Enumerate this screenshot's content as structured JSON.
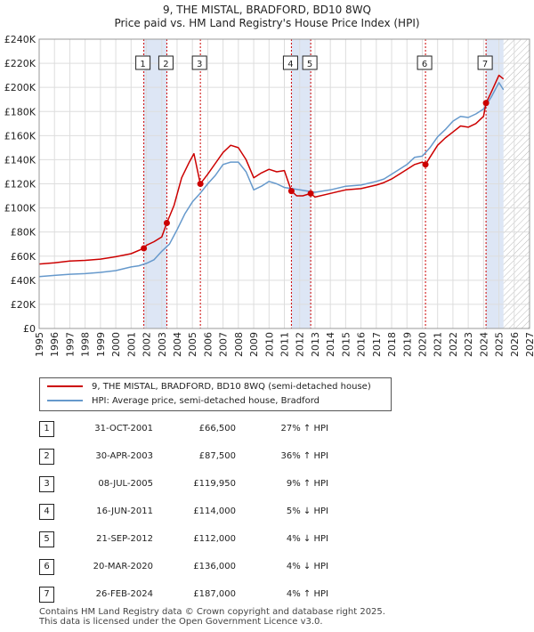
{
  "title_line1": "9, THE MISTAL, BRADFORD, BD10 8WQ",
  "title_line2": "Price paid vs. HM Land Registry's House Price Index (HPI)",
  "legend": [
    {
      "label": "9, THE MISTAL, BRADFORD, BD10 8WQ (semi-detached house)",
      "color": "#cc0000"
    },
    {
      "label": "HPI: Average price, semi-detached house, Bradford",
      "color": "#6699cc"
    }
  ],
  "sales": [
    {
      "num": "1",
      "date": "31-OCT-2001",
      "price": "£66,500",
      "hpi": "27% ↑ HPI"
    },
    {
      "num": "2",
      "date": "30-APR-2003",
      "price": "£87,500",
      "hpi": "36% ↑ HPI"
    },
    {
      "num": "3",
      "date": "08-JUL-2005",
      "price": "£119,950",
      "hpi": "9% ↑ HPI"
    },
    {
      "num": "4",
      "date": "16-JUN-2011",
      "price": "£114,000",
      "hpi": "5% ↓ HPI"
    },
    {
      "num": "5",
      "date": "21-SEP-2012",
      "price": "£112,000",
      "hpi": "4% ↓ HPI"
    },
    {
      "num": "6",
      "date": "20-MAR-2020",
      "price": "£136,000",
      "hpi": "4% ↓ HPI"
    },
    {
      "num": "7",
      "date": "26-FEB-2024",
      "price": "£187,000",
      "hpi": "4% ↑ HPI"
    }
  ],
  "footer_line1": "Contains HM Land Registry data © Crown copyright and database right 2025.",
  "footer_line2": "This data is licensed under the Open Government Licence v3.0.",
  "chart_data": {
    "type": "line",
    "title": "9, THE MISTAL, BRADFORD, BD10 8WQ — Price paid vs. HM Land Registry's House Price Index (HPI)",
    "xlabel": "",
    "ylabel": "",
    "xlim": [
      1995,
      2027
    ],
    "ylim": [
      0,
      240000
    ],
    "x_ticks": [
      1995,
      1996,
      1997,
      1998,
      1999,
      2000,
      2001,
      2002,
      2003,
      2004,
      2005,
      2006,
      2007,
      2008,
      2009,
      2010,
      2011,
      2012,
      2013,
      2014,
      2015,
      2016,
      2017,
      2018,
      2019,
      2020,
      2021,
      2022,
      2023,
      2024,
      2025,
      2026,
      2027
    ],
    "y_ticks": [
      0,
      20000,
      40000,
      60000,
      80000,
      100000,
      120000,
      140000,
      160000,
      180000,
      200000,
      220000,
      240000
    ],
    "y_tick_labels": [
      "£0",
      "£20K",
      "£40K",
      "£60K",
      "£80K",
      "£100K",
      "£120K",
      "£140K",
      "£160K",
      "£180K",
      "£200K",
      "£220K",
      "£240K"
    ],
    "grid": true,
    "legend_position": "below",
    "series": [
      {
        "name": "HPI: Average price, semi-detached house, Bradford",
        "color": "#6699cc",
        "x": [
          1995,
          1996,
          1997,
          1998,
          1999,
          2000,
          2001,
          2001.5,
          2002,
          2002.5,
          2003,
          2003.5,
          2004,
          2004.5,
          2005,
          2005.5,
          2006,
          2006.5,
          2007,
          2007.5,
          2008,
          2008.5,
          2009,
          2009.5,
          2010,
          2010.5,
          2011,
          2011.5,
          2012,
          2012.5,
          2013,
          2014,
          2015,
          2016,
          2017,
          2017.5,
          2018,
          2019,
          2019.5,
          2020,
          2020.5,
          2021,
          2021.5,
          2022,
          2022.5,
          2023,
          2023.5,
          2024,
          2024.5,
          2025,
          2025.3
        ],
        "values": [
          43000,
          44000,
          45000,
          45500,
          46500,
          48000,
          51000,
          52000,
          54000,
          57000,
          64000,
          70000,
          82000,
          95000,
          105000,
          112000,
          120000,
          127000,
          136000,
          138000,
          138000,
          130000,
          115000,
          118000,
          122000,
          120000,
          117000,
          116000,
          115000,
          114000,
          113000,
          115000,
          118000,
          119000,
          122000,
          124000,
          128000,
          136000,
          142000,
          143000,
          150000,
          159000,
          165000,
          172000,
          176000,
          175000,
          178000,
          182000,
          192000,
          204000,
          198000
        ]
      },
      {
        "name": "9, THE MISTAL, BRADFORD, BD10 8WQ (semi-detached house)",
        "color": "#cc0000",
        "x": [
          1995,
          1996,
          1997,
          1998,
          1999,
          2000,
          2001,
          2001.83,
          2002,
          2002.5,
          2003,
          2003.33,
          2003.8,
          2004.3,
          2004.8,
          2005.1,
          2005.52,
          2006,
          2006.5,
          2007,
          2007.5,
          2008,
          2008.5,
          2009,
          2009.5,
          2010,
          2010.5,
          2011,
          2011.46,
          2011.8,
          2012.2,
          2012.72,
          2013,
          2014,
          2015,
          2016,
          2017,
          2017.5,
          2018,
          2018.5,
          2019,
          2019.5,
          2020,
          2020.21,
          2020.5,
          2021,
          2021.5,
          2022,
          2022.5,
          2023,
          2023.5,
          2024,
          2024.16,
          2024.5,
          2025,
          2025.3
        ],
        "values": [
          53500,
          54500,
          56000,
          56500,
          57500,
          59500,
          62000,
          66500,
          69000,
          72000,
          76000,
          87500,
          102000,
          125000,
          138000,
          145000,
          119950,
          128000,
          137000,
          146000,
          152000,
          150000,
          140000,
          125000,
          129000,
          132000,
          130000,
          131000,
          114000,
          110000,
          110000,
          112000,
          109000,
          112000,
          115000,
          116000,
          119000,
          121000,
          124000,
          128000,
          132000,
          136000,
          138000,
          136000,
          142000,
          152000,
          158000,
          163000,
          168000,
          167000,
          170000,
          176000,
          187000,
          196000,
          210000,
          207000
        ]
      }
    ],
    "sales": [
      {
        "label": "1",
        "x": 2001.83,
        "value": 66500
      },
      {
        "label": "2",
        "x": 2003.33,
        "value": 87500
      },
      {
        "label": "3",
        "x": 2005.52,
        "value": 119950
      },
      {
        "label": "4",
        "x": 2011.46,
        "value": 114000
      },
      {
        "label": "5",
        "x": 2012.72,
        "value": 112000
      },
      {
        "label": "6",
        "x": 2020.21,
        "value": 136000
      },
      {
        "label": "7",
        "x": 2024.16,
        "value": 187000
      }
    ],
    "shaded_periods": [
      [
        2001.83,
        2003.33
      ],
      [
        2011.46,
        2012.72
      ],
      [
        2024.16,
        2025.3
      ]
    ],
    "hatched_after": 2025.3,
    "colors": {
      "property": "#cc0000",
      "hpi": "#6699cc",
      "shade": "#dde6f5",
      "grid": "#dddddd"
    }
  }
}
